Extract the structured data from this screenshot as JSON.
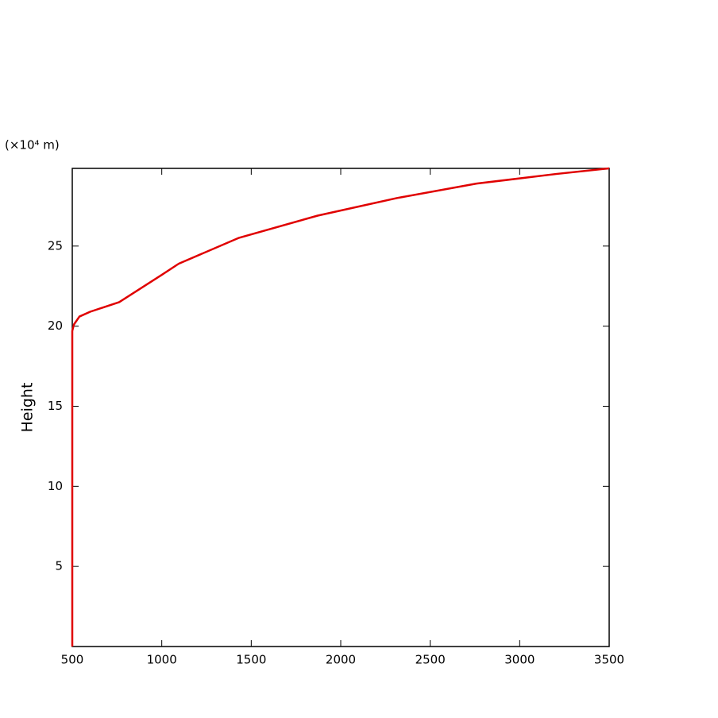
{
  "chart_data": {
    "type": "line",
    "title": "(×10⁴ m)",
    "y_label": "Height",
    "x": [
      500,
      500,
      509,
      540,
      600,
      762,
      1000,
      1095,
      1428,
      1871,
      2315,
      2759,
      3203,
      3500
    ],
    "values": [
      0,
      19.7,
      20.1,
      20.6,
      20.9,
      21.5,
      23.2,
      23.9,
      25.5,
      26.9,
      28.0,
      28.9,
      29.5,
      29.85
    ],
    "color": "#e00000",
    "xlim": [
      500,
      3500
    ],
    "xticks": [
      500,
      1000,
      1500,
      2000,
      2500,
      3000,
      3500
    ],
    "ylim": [
      0,
      29.85
    ],
    "yticks": [
      5,
      10,
      15,
      20,
      25
    ]
  }
}
